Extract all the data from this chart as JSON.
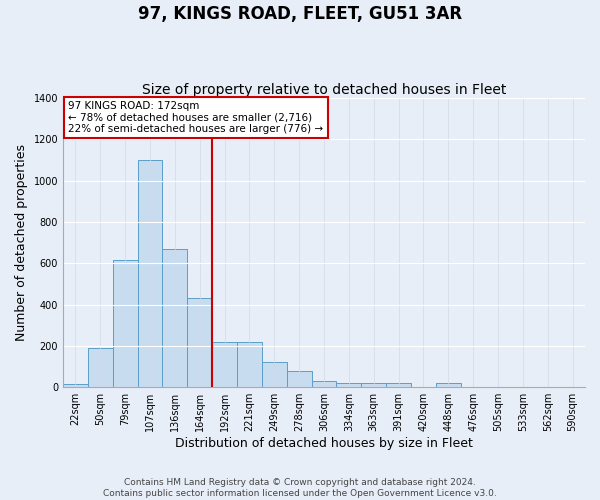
{
  "title": "97, KINGS ROAD, FLEET, GU51 3AR",
  "subtitle": "Size of property relative to detached houses in Fleet",
  "xlabel": "Distribution of detached houses by size in Fleet",
  "ylabel": "Number of detached properties",
  "bar_labels": [
    "22sqm",
    "50sqm",
    "79sqm",
    "107sqm",
    "136sqm",
    "164sqm",
    "192sqm",
    "221sqm",
    "249sqm",
    "278sqm",
    "306sqm",
    "334sqm",
    "363sqm",
    "391sqm",
    "420sqm",
    "448sqm",
    "476sqm",
    "505sqm",
    "533sqm",
    "562sqm",
    "590sqm"
  ],
  "bar_values": [
    15,
    190,
    615,
    1100,
    670,
    430,
    220,
    220,
    120,
    80,
    30,
    20,
    20,
    20,
    0,
    20,
    0,
    0,
    0,
    0,
    0
  ],
  "bar_color": "#c8dcf0",
  "bar_edge_color": "#5a9ec9",
  "vline_x": 5.5,
  "annotation_text_line1": "97 KINGS ROAD: 172sqm",
  "annotation_text_line2": "← 78% of detached houses are smaller (2,716)",
  "annotation_text_line3": "22% of semi-detached houses are larger (776) →",
  "vline_color": "#cc0000",
  "ylim": [
    0,
    1400
  ],
  "yticks": [
    0,
    200,
    400,
    600,
    800,
    1000,
    1200,
    1400
  ],
  "footer_line1": "Contains HM Land Registry data © Crown copyright and database right 2024.",
  "footer_line2": "Contains public sector information licensed under the Open Government Licence v3.0.",
  "bg_color": "#e8eef8",
  "plot_bg_color": "#e8eef8",
  "title_fontsize": 12,
  "subtitle_fontsize": 10,
  "axis_label_fontsize": 9,
  "tick_fontsize": 7,
  "footer_fontsize": 6.5
}
